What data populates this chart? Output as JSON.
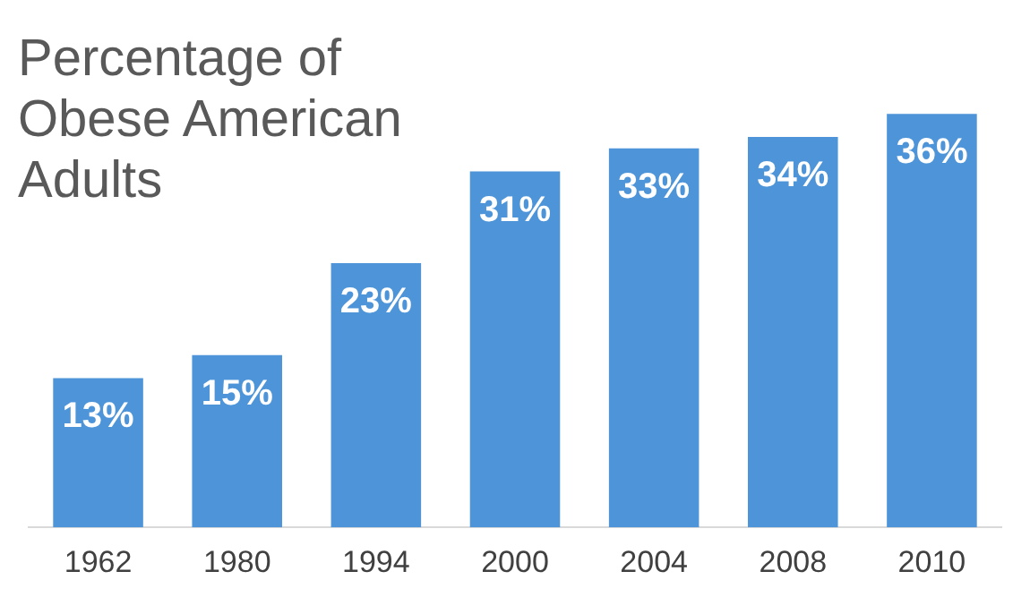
{
  "chart_data": {
    "type": "bar",
    "title": "Percentage of Obese American Adults",
    "categories": [
      "1962",
      "1980",
      "1994",
      "2000",
      "2004",
      "2008",
      "2010"
    ],
    "values": [
      13,
      15,
      23,
      31,
      33,
      34,
      36
    ],
    "value_labels": [
      "13%",
      "15%",
      "23%",
      "31%",
      "33%",
      "34%",
      "36%"
    ],
    "color": "#4d94d8",
    "tick_labels": "x"
  }
}
